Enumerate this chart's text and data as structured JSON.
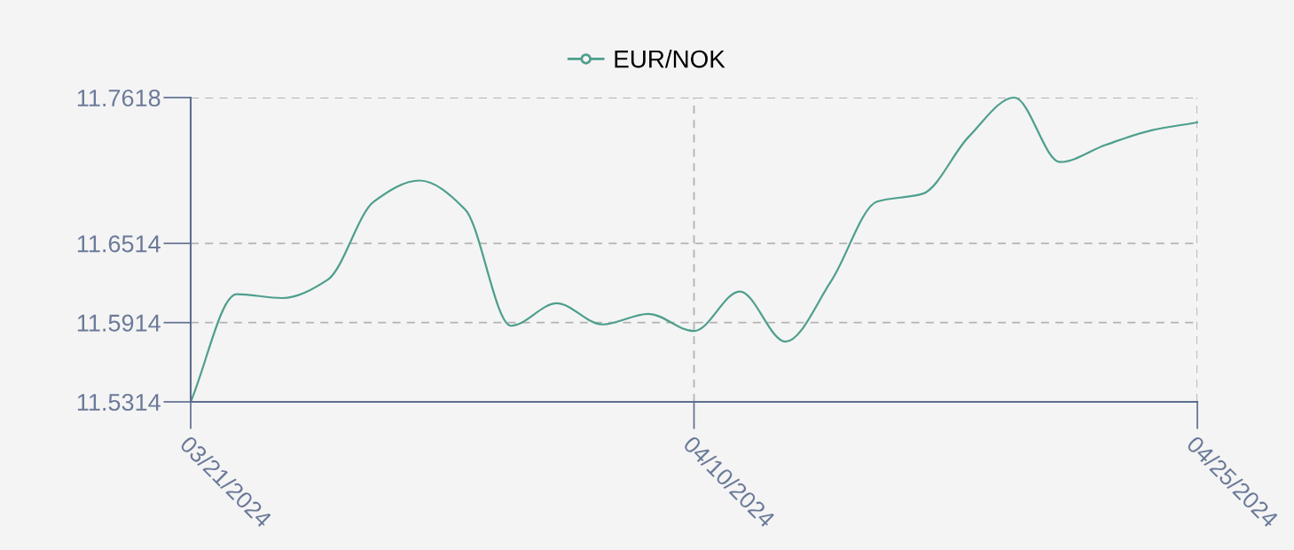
{
  "chart_data": {
    "type": "line",
    "categories": [
      "03/21/2024",
      null,
      null,
      null,
      null,
      null,
      null,
      null,
      null,
      null,
      null,
      "04/10/2024",
      null,
      null,
      null,
      null,
      null,
      null,
      null,
      null,
      null,
      null,
      "04/25/2024"
    ],
    "series": [
      {
        "name": "EUR/NOK",
        "color": "#4e9f8d",
        "values": [
          11.5314,
          11.613,
          11.61,
          11.624,
          11.683,
          11.699,
          11.677,
          11.589,
          11.606,
          11.59,
          11.598,
          11.585,
          11.615,
          11.577,
          11.623,
          11.683,
          11.689,
          11.732,
          11.7618,
          11.713,
          11.726,
          11.737,
          11.743
        ]
      }
    ],
    "ylim": [
      11.5314,
      11.7618
    ],
    "yticks": [
      11.5314,
      11.5914,
      11.6514,
      11.7618
    ],
    "grid": true,
    "legend": "top"
  }
}
